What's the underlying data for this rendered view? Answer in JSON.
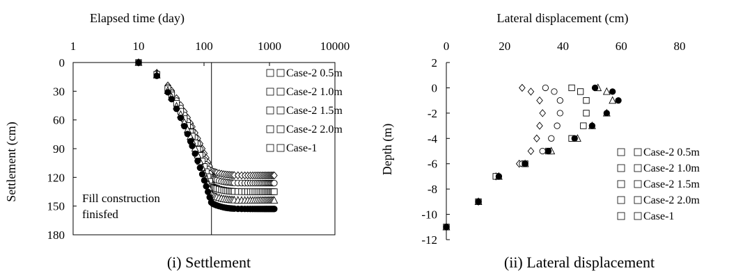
{
  "chart_data": [
    {
      "type": "scatter",
      "caption": "(i) Settlement",
      "xlabel": "Elapsed time (day)",
      "ylabel": "Settlement (cm)",
      "x_scale": "log",
      "xlim": [
        1,
        10000
      ],
      "ylim": [
        180,
        0
      ],
      "x_ticks": [
        "1",
        "10",
        "100",
        "1000",
        "10000"
      ],
      "y_ticks": [
        "0",
        "30",
        "60",
        "90",
        "120",
        "150",
        "180"
      ],
      "annotation": "Fill construction\nfinisfed",
      "annotation_line_x": 130,
      "legend_position": "right",
      "series": [
        {
          "name": "Case-2 0.5m",
          "marker": "diamond",
          "fill": "open",
          "final": 118
        },
        {
          "name": "Case-2 1.0m",
          "marker": "circle",
          "fill": "open",
          "final": 126
        },
        {
          "name": "Case-2 1.5m",
          "marker": "square",
          "fill": "open",
          "final": 135
        },
        {
          "name": "Case-2 2.0m",
          "marker": "triangle",
          "fill": "open",
          "final": 144
        },
        {
          "name": "Case-1",
          "marker": "circle",
          "fill": "filled",
          "final": 153
        }
      ]
    },
    {
      "type": "scatter",
      "caption": "(ii) Lateral displacement",
      "xlabel": "Lateral displacement (cm)",
      "ylabel": "Depth (m)",
      "xlim": [
        0,
        80
      ],
      "ylim": [
        -12,
        2
      ],
      "x_ticks": [
        "0",
        "20",
        "40",
        "60",
        "80"
      ],
      "y_ticks": [
        "2",
        "0",
        "-2",
        "-4",
        "-6",
        "-8",
        "-10",
        "-12"
      ],
      "legend_position": "bottom-right",
      "series": [
        {
          "name": "Case-2 0.5m",
          "marker": "diamond",
          "fill": "open",
          "points": [
            [
              0,
              -11
            ],
            [
              11,
              -9
            ],
            [
              17,
              -7
            ],
            [
              25,
              -6
            ],
            [
              29,
              -5
            ],
            [
              31,
              -4
            ],
            [
              32,
              -3
            ],
            [
              33,
              -2
            ],
            [
              32,
              -1
            ],
            [
              29,
              -0.3
            ],
            [
              26,
              0
            ]
          ]
        },
        {
          "name": "Case-2 1.0m",
          "marker": "circle",
          "fill": "open",
          "points": [
            [
              0,
              -11
            ],
            [
              11,
              -9
            ],
            [
              18,
              -7
            ],
            [
              26,
              -6
            ],
            [
              33,
              -5
            ],
            [
              36,
              -4
            ],
            [
              38,
              -3
            ],
            [
              39,
              -2
            ],
            [
              39,
              -1
            ],
            [
              37,
              -0.3
            ],
            [
              34,
              0
            ]
          ]
        },
        {
          "name": "Case-2 1.5m",
          "marker": "square",
          "fill": "open",
          "points": [
            [
              0,
              -11
            ],
            [
              11,
              -9
            ],
            [
              17,
              -7
            ],
            [
              27,
              -6
            ],
            [
              35,
              -5
            ],
            [
              43,
              -4
            ],
            [
              47,
              -3
            ],
            [
              48,
              -2
            ],
            [
              48,
              -1
            ],
            [
              46,
              -0.3
            ],
            [
              43,
              0
            ]
          ]
        },
        {
          "name": "Case-2 2.0m",
          "marker": "triangle",
          "fill": "open",
          "points": [
            [
              0,
              -11
            ],
            [
              11,
              -9
            ],
            [
              18,
              -7
            ],
            [
              27,
              -6
            ],
            [
              36,
              -5
            ],
            [
              45,
              -4
            ],
            [
              50,
              -3
            ],
            [
              55,
              -2
            ],
            [
              57,
              -1
            ],
            [
              55,
              -0.3
            ],
            [
              52,
              0
            ]
          ]
        },
        {
          "name": "Case-1",
          "marker": "circle",
          "fill": "filled",
          "points": [
            [
              0,
              -11
            ],
            [
              11,
              -9
            ],
            [
              18,
              -7
            ],
            [
              27,
              -6
            ],
            [
              35,
              -5
            ],
            [
              44,
              -4
            ],
            [
              50,
              -3
            ],
            [
              55,
              -2
            ],
            [
              59,
              -1
            ],
            [
              57,
              -0.3
            ],
            [
              51,
              0
            ]
          ]
        }
      ]
    }
  ]
}
